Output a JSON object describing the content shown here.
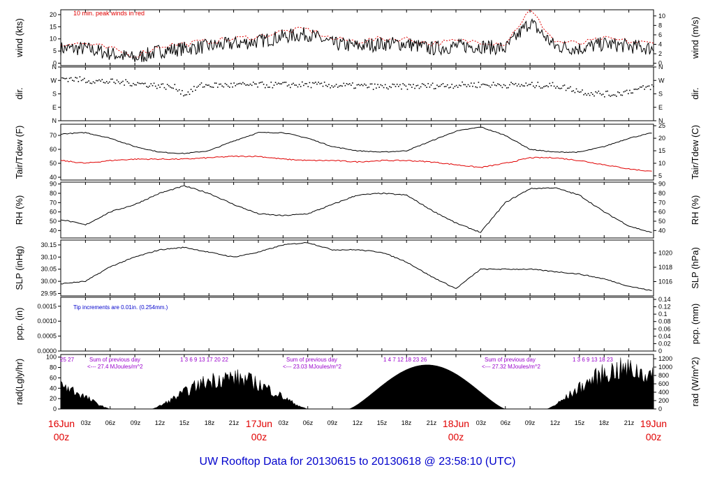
{
  "footer": {
    "title": "UW Rooftop Data for 20130615  to  20130618 @ 23:58:10  (UTC)"
  },
  "colors": {
    "axis": "#000000",
    "red": "#e00000",
    "blue": "#0000cc",
    "purple": "#9900cc",
    "black": "#000000"
  },
  "time_axis": {
    "hour_ticks": [
      "03z",
      "06z",
      "09z",
      "12z",
      "15z",
      "18z",
      "21z",
      "03z",
      "06z",
      "09z",
      "12z",
      "15z",
      "18z",
      "21z",
      "03z",
      "06z",
      "09z",
      "12z",
      "15z",
      "18z",
      "21z"
    ],
    "day_labels": [
      {
        "day": "16Jun",
        "hour": "00z"
      },
      {
        "day": "17Jun",
        "hour": "00z"
      },
      {
        "day": "18Jun",
        "hour": "00z"
      },
      {
        "day": "19Jun",
        "hour": "00z"
      }
    ]
  },
  "chart_data": [
    {
      "type": "line",
      "id": "wind",
      "ylabel": "wind (kts)",
      "ylabel_right": "wind (m/s)",
      "yticks": [
        "0",
        "5",
        "10",
        "15",
        "20"
      ],
      "yticks_right": [
        "0",
        "2",
        "4",
        "6",
        "8",
        "10"
      ],
      "annotation": "10 min. peak winds in red",
      "x": [
        0,
        3,
        6,
        9,
        12,
        15,
        18,
        21,
        24,
        27,
        30,
        33,
        36,
        39,
        42,
        45,
        48,
        51,
        54,
        57,
        60,
        63,
        66,
        69,
        72
      ],
      "series": [
        {
          "values": [
            6,
            6,
            4,
            2,
            5,
            6,
            7,
            8,
            9,
            11,
            12,
            8,
            7,
            8,
            8,
            6,
            7,
            7,
            6,
            17,
            7,
            6,
            8,
            7,
            6
          ]
        },
        {
          "values": [
            8,
            8,
            6,
            3,
            7,
            8,
            9,
            10,
            11,
            13,
            14,
            10,
            9,
            10,
            10,
            8,
            9,
            9,
            8,
            22,
            9,
            8,
            10,
            9,
            8
          ]
        }
      ]
    },
    {
      "type": "scatter",
      "id": "dir",
      "ylabel": "dir.",
      "ylabel_right": "dir.",
      "yticks": [
        "N",
        "E",
        "S",
        "W",
        "N"
      ],
      "yticks_right": [
        "N",
        "E",
        "S",
        "W",
        "N"
      ]
    },
    {
      "type": "line",
      "id": "temp",
      "ylabel": "Tair/Tdew (F)",
      "ylabel_right": "Tair/Tdew (C)",
      "yticks": [
        "40",
        "50",
        "60",
        "70"
      ],
      "yticks_right": [
        "5",
        "10",
        "15",
        "20",
        "25"
      ],
      "x": [
        0,
        3,
        6,
        9,
        12,
        15,
        18,
        21,
        24,
        27,
        30,
        33,
        36,
        39,
        42,
        45,
        48,
        51,
        54,
        57,
        60,
        63,
        66,
        69,
        72
      ],
      "series": [
        {
          "values": [
            71,
            72,
            68,
            62,
            58,
            57,
            59,
            66,
            72,
            72,
            68,
            62,
            59,
            58,
            59,
            66,
            73,
            76,
            70,
            60,
            58,
            58,
            62,
            68,
            72
          ]
        },
        {
          "values": [
            52,
            50,
            52,
            53,
            53,
            53,
            54,
            55,
            55,
            53,
            52,
            52,
            51,
            52,
            52,
            51,
            49,
            47,
            50,
            54,
            54,
            52,
            49,
            46,
            44
          ]
        }
      ]
    },
    {
      "type": "line",
      "id": "rh",
      "ylabel": "RH (%)",
      "ylabel_right": "RH (%)",
      "yticks": [
        "40",
        "50",
        "60",
        "70",
        "80",
        "90"
      ],
      "yticks_right": [
        "40",
        "50",
        "60",
        "70",
        "80",
        "90"
      ],
      "x": [
        0,
        3,
        6,
        9,
        12,
        15,
        18,
        21,
        24,
        27,
        30,
        33,
        36,
        39,
        42,
        45,
        48,
        51,
        54,
        57,
        60,
        63,
        66,
        69,
        72
      ],
      "series": [
        {
          "values": [
            52,
            46,
            60,
            68,
            80,
            88,
            80,
            68,
            58,
            56,
            58,
            68,
            78,
            80,
            78,
            62,
            48,
            38,
            70,
            85,
            86,
            78,
            60,
            45,
            37
          ]
        }
      ]
    },
    {
      "type": "line",
      "id": "slp",
      "ylabel": "SLP (inHg)",
      "ylabel_right": "SLP (hPa)",
      "yticks": [
        "29.95",
        "30.00",
        "30.05",
        "30.10",
        "30.15"
      ],
      "yticks_right": [
        "1016",
        "1018",
        "1020"
      ],
      "x": [
        0,
        3,
        6,
        9,
        12,
        15,
        18,
        21,
        24,
        27,
        30,
        33,
        36,
        39,
        42,
        45,
        48,
        51,
        54,
        57,
        60,
        63,
        66,
        69,
        72
      ],
      "series": [
        {
          "values": [
            29.99,
            30.0,
            30.06,
            30.1,
            30.13,
            30.14,
            30.12,
            30.1,
            30.12,
            30.15,
            30.16,
            30.13,
            30.13,
            30.12,
            30.08,
            30.02,
            29.97,
            30.05,
            30.05,
            30.05,
            30.04,
            30.03,
            30.01,
            29.98,
            29.96
          ]
        }
      ]
    },
    {
      "type": "line",
      "id": "pcp",
      "ylabel": "pcp. (in)",
      "ylabel_right": "pcp. (mm)",
      "yticks": [
        "0.0000",
        "0.0005",
        "0.0010",
        "0.0015"
      ],
      "yticks_right": [
        "0",
        "0.02",
        "0.04",
        "0.06",
        "0.08",
        "0.1",
        "0.12",
        "0.14"
      ],
      "annotation": "Tip increments are 0.01in. (0.254mm.)",
      "series": [
        {
          "values": []
        }
      ]
    },
    {
      "type": "area",
      "id": "rad",
      "ylabel": "rad(Lgly/hr)",
      "ylabel_right": "rad (W/m^2)",
      "yticks": [
        "0",
        "20",
        "40",
        "60",
        "80",
        "100"
      ],
      "yticks_right": [
        "0",
        "200",
        "400",
        "600",
        "800",
        "1000",
        "1200"
      ],
      "days": [
        {
          "sum_label": "Sum of previous day",
          "sum_value": "<--- 27.4 MJoules/m^2",
          "hours": "25 27"
        },
        {
          "sum_label": "Sum of previous day",
          "sum_value": "<--- 23.03 MJoules/m^2",
          "hours": "1 3 6 9 13 17 20 22"
        },
        {
          "sum_label": "Sum of previous day",
          "sum_value": "<--- 27.32 MJoules/m^2",
          "hours": "1 4 7 12 18 23 26"
        },
        {
          "sum_label": "",
          "sum_value": "",
          "hours": "1 3 6 9 13 18 23"
        }
      ]
    }
  ]
}
